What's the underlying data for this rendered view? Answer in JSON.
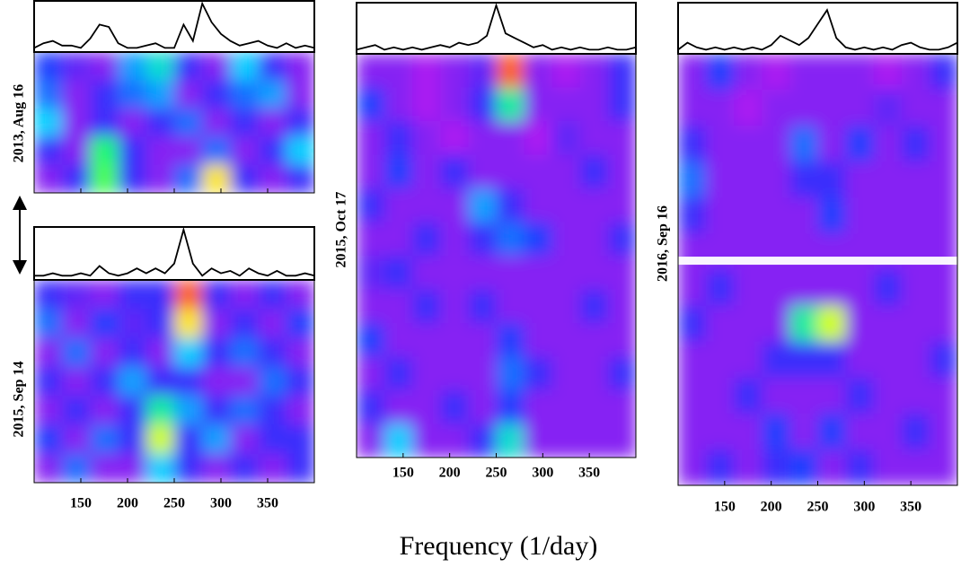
{
  "xlabel": "Frequency (1/day)",
  "chart_data": [
    {
      "type": "heatmap",
      "ylabel": "2013, Aug 16",
      "xlim": [
        100,
        400
      ],
      "xticks": [
        150,
        200,
        250,
        300,
        350
      ],
      "tick_labels": false,
      "colorscale": [
        "#ff00ff",
        "#a020f0",
        "#2030ff",
        "#00d0ff",
        "#20ff60",
        "#ffff00",
        "#ff2000"
      ],
      "periodogram": {
        "ylim": [
          0,
          1
        ],
        "color": "#000000",
        "x": [
          100,
          110,
          120,
          130,
          140,
          150,
          160,
          170,
          180,
          190,
          200,
          210,
          220,
          230,
          240,
          250,
          260,
          270,
          280,
          290,
          300,
          310,
          320,
          330,
          340,
          350,
          360,
          370,
          380,
          390,
          400
        ],
        "values": [
          0.05,
          0.15,
          0.2,
          0.1,
          0.1,
          0.05,
          0.25,
          0.55,
          0.5,
          0.15,
          0.05,
          0.05,
          0.1,
          0.15,
          0.05,
          0.05,
          0.55,
          0.2,
          1.0,
          0.6,
          0.35,
          0.2,
          0.1,
          0.15,
          0.2,
          0.1,
          0.05,
          0.15,
          0.05,
          0.1,
          0.05
        ]
      },
      "z": [
        [
          0.35,
          0.25,
          0.2,
          0.45,
          0.55,
          0.3,
          0.2,
          0.5,
          0.3,
          0.2
        ],
        [
          0.4,
          0.2,
          0.3,
          0.4,
          0.45,
          0.2,
          0.3,
          0.4,
          0.45,
          0.2
        ],
        [
          0.5,
          0.2,
          0.3,
          0.2,
          0.3,
          0.4,
          0.2,
          0.3,
          0.2,
          0.3
        ],
        [
          0.3,
          0.2,
          0.65,
          0.3,
          0.2,
          0.2,
          0.4,
          0.2,
          0.3,
          0.5
        ],
        [
          0.2,
          0.3,
          0.7,
          0.3,
          0.2,
          0.4,
          0.85,
          0.3,
          0.2,
          0.3
        ]
      ]
    },
    {
      "type": "heatmap",
      "ylabel": "2015, Sep 14",
      "xlim": [
        100,
        400
      ],
      "xticks": [
        150,
        200,
        250,
        300,
        350
      ],
      "tick_labels": true,
      "colorscale": [
        "#ff00ff",
        "#a020f0",
        "#2030ff",
        "#00d0ff",
        "#20ff60",
        "#ffff00",
        "#ff2000"
      ],
      "periodogram": {
        "ylim": [
          0,
          1
        ],
        "color": "#000000",
        "x": [
          100,
          110,
          120,
          130,
          140,
          150,
          160,
          170,
          180,
          190,
          200,
          210,
          220,
          230,
          240,
          250,
          260,
          270,
          280,
          290,
          300,
          310,
          320,
          330,
          340,
          350,
          360,
          370,
          380,
          390,
          400
        ],
        "values": [
          0.05,
          0.05,
          0.1,
          0.05,
          0.05,
          0.1,
          0.05,
          0.25,
          0.1,
          0.05,
          0.1,
          0.2,
          0.1,
          0.2,
          0.1,
          0.3,
          1.0,
          0.3,
          0.05,
          0.2,
          0.1,
          0.15,
          0.05,
          0.2,
          0.1,
          0.05,
          0.15,
          0.05,
          0.05,
          0.1,
          0.05
        ]
      },
      "z": [
        [
          0.3,
          0.25,
          0.2,
          0.3,
          0.3,
          0.95,
          0.3,
          0.2,
          0.3,
          0.2
        ],
        [
          0.4,
          0.2,
          0.35,
          0.25,
          0.3,
          0.85,
          0.2,
          0.3,
          0.2,
          0.35
        ],
        [
          0.2,
          0.4,
          0.2,
          0.3,
          0.2,
          0.5,
          0.3,
          0.4,
          0.3,
          0.2
        ],
        [
          0.3,
          0.2,
          0.3,
          0.45,
          0.3,
          0.3,
          0.2,
          0.2,
          0.4,
          0.3
        ],
        [
          0.2,
          0.3,
          0.2,
          0.3,
          0.6,
          0.45,
          0.3,
          0.4,
          0.3,
          0.2
        ],
        [
          0.35,
          0.2,
          0.4,
          0.3,
          0.8,
          0.3,
          0.45,
          0.2,
          0.3,
          0.3
        ],
        [
          0.2,
          0.4,
          0.2,
          0.2,
          0.5,
          0.3,
          0.2,
          0.3,
          0.2,
          0.3
        ]
      ]
    },
    {
      "type": "heatmap",
      "ylabel": "2015, Oct 17",
      "xlim": [
        100,
        400
      ],
      "xticks": [
        150,
        200,
        250,
        300,
        350
      ],
      "tick_labels": true,
      "colorscale": [
        "#ff00ff",
        "#a020f0",
        "#2030ff",
        "#00d0ff",
        "#20ff60",
        "#ffff00",
        "#ff2000"
      ],
      "periodogram": {
        "ylim": [
          0,
          1
        ],
        "color": "#000000",
        "x": [
          100,
          110,
          120,
          130,
          140,
          150,
          160,
          170,
          180,
          190,
          200,
          210,
          220,
          230,
          240,
          250,
          260,
          270,
          280,
          290,
          300,
          310,
          320,
          330,
          340,
          350,
          360,
          370,
          380,
          390,
          400
        ],
        "values": [
          0.05,
          0.1,
          0.15,
          0.05,
          0.1,
          0.05,
          0.1,
          0.05,
          0.1,
          0.15,
          0.1,
          0.2,
          0.15,
          0.2,
          0.35,
          1.0,
          0.4,
          0.3,
          0.2,
          0.1,
          0.15,
          0.05,
          0.1,
          0.05,
          0.1,
          0.05,
          0.05,
          0.1,
          0.05,
          0.05,
          0.1
        ]
      },
      "z": [
        [
          0.2,
          0.2,
          0.15,
          0.2,
          0.25,
          0.95,
          0.2,
          0.15,
          0.2,
          0.3
        ],
        [
          0.35,
          0.2,
          0.15,
          0.2,
          0.3,
          0.6,
          0.2,
          0.2,
          0.2,
          0.3
        ],
        [
          0.2,
          0.3,
          0.2,
          0.15,
          0.2,
          0.2,
          0.15,
          0.25,
          0.2,
          0.2
        ],
        [
          0.2,
          0.35,
          0.2,
          0.3,
          0.2,
          0.2,
          0.2,
          0.2,
          0.3,
          0.2
        ],
        [
          0.3,
          0.2,
          0.2,
          0.2,
          0.45,
          0.3,
          0.2,
          0.2,
          0.2,
          0.2
        ],
        [
          0.2,
          0.2,
          0.3,
          0.2,
          0.3,
          0.4,
          0.35,
          0.2,
          0.2,
          0.3
        ],
        [
          0.25,
          0.3,
          0.2,
          0.2,
          0.2,
          0.2,
          0.2,
          0.2,
          0.2,
          0.2
        ],
        [
          0.2,
          0.2,
          0.3,
          0.2,
          0.3,
          0.2,
          0.2,
          0.2,
          0.3,
          0.2
        ],
        [
          0.35,
          0.2,
          0.2,
          0.2,
          0.2,
          0.35,
          0.2,
          0.2,
          0.2,
          0.2
        ],
        [
          0.2,
          0.3,
          0.2,
          0.2,
          0.2,
          0.4,
          0.3,
          0.2,
          0.2,
          0.3
        ],
        [
          0.3,
          0.2,
          0.2,
          0.3,
          0.2,
          0.35,
          0.2,
          0.2,
          0.2,
          0.2
        ],
        [
          0.2,
          0.5,
          0.2,
          0.2,
          0.3,
          0.55,
          0.2,
          0.2,
          0.2,
          0.2
        ]
      ]
    },
    {
      "type": "heatmap",
      "ylabel": "2016, Sep 16",
      "xlim": [
        100,
        400
      ],
      "xticks": [
        150,
        200,
        250,
        300,
        350
      ],
      "tick_labels": true,
      "colorscale": [
        "#ff00ff",
        "#a020f0",
        "#2030ff",
        "#00d0ff",
        "#20ff60",
        "#ffff00",
        "#ff2000"
      ],
      "periodogram": {
        "ylim": [
          0,
          1
        ],
        "color": "#000000",
        "x": [
          100,
          110,
          120,
          130,
          140,
          150,
          160,
          170,
          180,
          190,
          200,
          210,
          220,
          230,
          240,
          250,
          260,
          270,
          280,
          290,
          300,
          310,
          320,
          330,
          340,
          350,
          360,
          370,
          380,
          390,
          400
        ],
        "values": [
          0.05,
          0.2,
          0.1,
          0.05,
          0.1,
          0.05,
          0.1,
          0.05,
          0.1,
          0.05,
          0.15,
          0.35,
          0.25,
          0.15,
          0.3,
          0.6,
          0.9,
          0.3,
          0.1,
          0.05,
          0.1,
          0.05,
          0.1,
          0.05,
          0.15,
          0.2,
          0.1,
          0.05,
          0.05,
          0.1,
          0.2
        ]
      },
      "z": [
        [
          0.2,
          0.35,
          0.2,
          0.15,
          0.2,
          0.2,
          0.2,
          0.15,
          0.2,
          0.3
        ],
        [
          0.2,
          0.2,
          0.15,
          0.2,
          0.2,
          0.2,
          0.2,
          0.25,
          0.2,
          0.2
        ],
        [
          0.3,
          0.2,
          0.2,
          0.2,
          0.4,
          0.2,
          0.35,
          0.2,
          0.3,
          0.2
        ],
        [
          0.4,
          0.2,
          0.2,
          0.2,
          0.3,
          0.3,
          0.2,
          0.2,
          0.2,
          0.2
        ],
        [
          0.3,
          0.2,
          0.2,
          0.2,
          0.2,
          0.35,
          0.2,
          0.2,
          0.2,
          0.2
        ],
        [
          0.2,
          0.2,
          0.2,
          0.2,
          0.2,
          0.2,
          0.2,
          0.2,
          0.2,
          0.2
        ],
        [
          0.2,
          0.3,
          0.2,
          0.2,
          0.2,
          0.2,
          0.2,
          0.3,
          0.2,
          0.2
        ],
        [
          0.3,
          0.2,
          0.2,
          0.2,
          0.6,
          0.8,
          0.2,
          0.2,
          0.2,
          0.2
        ],
        [
          0.2,
          0.2,
          0.2,
          0.3,
          0.3,
          0.3,
          0.2,
          0.2,
          0.2,
          0.3
        ],
        [
          0.2,
          0.2,
          0.3,
          0.2,
          0.2,
          0.2,
          0.3,
          0.2,
          0.2,
          0.2
        ],
        [
          0.2,
          0.2,
          0.2,
          0.35,
          0.2,
          0.35,
          0.2,
          0.2,
          0.3,
          0.2
        ],
        [
          0.2,
          0.3,
          0.2,
          0.3,
          0.35,
          0.2,
          0.3,
          0.2,
          0.2,
          0.2
        ]
      ]
    }
  ]
}
